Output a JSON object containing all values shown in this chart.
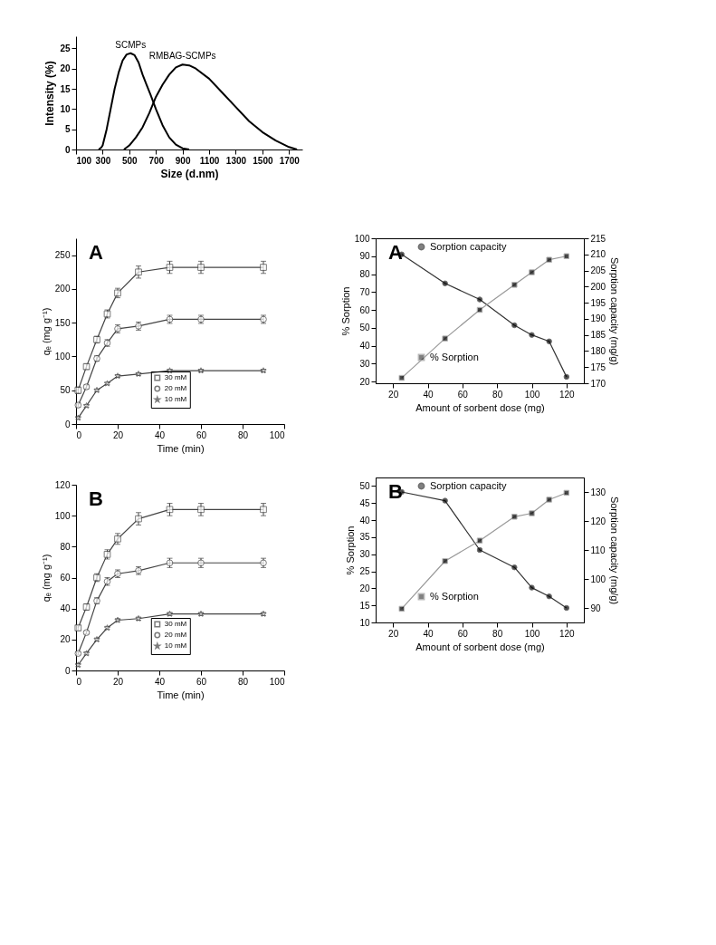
{
  "chart_data": [
    {
      "type": "line",
      "xlabel": "Size (d.nm)",
      "ylabel": "Intensity (%)",
      "xlim": [
        100,
        1800
      ],
      "xticks": [
        100,
        300,
        500,
        700,
        900,
        1100,
        1300,
        1500,
        1700
      ],
      "ylim": [
        0,
        28
      ],
      "yticks": [
        0,
        5,
        10,
        15,
        20,
        25
      ],
      "grid": false,
      "legend": false,
      "marker": "none",
      "line_style": "solid",
      "series": [
        {
          "name": "SCMPs",
          "color": "#000000",
          "x": [
            270,
            290,
            300,
            330,
            360,
            390,
            420,
            450,
            480,
            510,
            540,
            570,
            600,
            630,
            660,
            700,
            750,
            800,
            850,
            900,
            950
          ],
          "values": [
            0,
            0.5,
            1,
            5,
            10,
            15,
            19,
            22,
            23.5,
            23.8,
            23.3,
            21.5,
            18.5,
            16,
            13.5,
            10,
            6,
            3,
            1.2,
            0.3,
            0
          ]
        },
        {
          "name": "RMBAG-SCMPs",
          "color": "#000000",
          "x": [
            460,
            500,
            550,
            600,
            650,
            700,
            750,
            800,
            850,
            900,
            950,
            1000,
            1100,
            1200,
            1300,
            1400,
            1500,
            1600,
            1700,
            1760
          ],
          "values": [
            0,
            1,
            3,
            5.5,
            9,
            13,
            16,
            18.5,
            20.3,
            21,
            20.8,
            20,
            17.5,
            14,
            10.5,
            7,
            4.3,
            2.2,
            0.6,
            0
          ]
        }
      ]
    },
    {
      "type": "line",
      "annotations": [
        "A"
      ],
      "xlabel": "Time (min)",
      "ylabel": "qₑ (mg g⁻¹)",
      "xlim": [
        0,
        100
      ],
      "xticks": [
        0,
        20,
        40,
        60,
        80,
        100
      ],
      "ylim": [
        0,
        275
      ],
      "yticks": [
        0,
        50,
        100,
        150,
        200,
        250
      ],
      "grid": false,
      "legend": "bottom",
      "line_style": "solid",
      "x": [
        1,
        5,
        10,
        15,
        20,
        30,
        45,
        60,
        90
      ],
      "series": [
        {
          "name": "30 mM",
          "color": "#444444",
          "marker": "square",
          "values": [
            50,
            85,
            125,
            163,
            194,
            225,
            232,
            232,
            232
          ],
          "errors": [
            5,
            4,
            5,
            6,
            7,
            9,
            9,
            9,
            9
          ]
        },
        {
          "name": "20 mM",
          "color": "#444444",
          "marker": "circle",
          "values": [
            28,
            55,
            97,
            120,
            141,
            145,
            155,
            155,
            155
          ],
          "errors": [
            3,
            3,
            4,
            5,
            6,
            6,
            6,
            6,
            6
          ]
        },
        {
          "name": "10 mM",
          "color": "#444444",
          "marker": "star",
          "values": [
            9,
            27,
            50,
            60,
            71,
            74,
            79,
            79,
            79
          ],
          "errors": [
            2,
            2,
            2,
            2,
            2,
            2,
            2,
            2,
            2
          ]
        }
      ]
    },
    {
      "type": "line",
      "annotations": [
        "B"
      ],
      "xlabel": "Time (min)",
      "ylabel": "qₑ (mg g⁻¹)",
      "xlim": [
        0,
        100
      ],
      "xticks": [
        0,
        20,
        40,
        60,
        80,
        100
      ],
      "ylim": [
        0,
        120
      ],
      "yticks": [
        0,
        20,
        40,
        60,
        80,
        100,
        120
      ],
      "grid": false,
      "legend": "bottom",
      "line_style": "solid",
      "x": [
        1,
        5,
        10,
        15,
        20,
        30,
        45,
        60,
        90
      ],
      "series": [
        {
          "name": "30 mM",
          "color": "#444444",
          "marker": "square",
          "values": [
            27.5,
            41,
            60,
            75,
            85,
            98,
            104,
            104,
            104
          ],
          "errors": [
            1.5,
            2,
            2.5,
            3,
            3.5,
            4,
            4,
            4,
            4
          ]
        },
        {
          "name": "20 mM",
          "color": "#444444",
          "marker": "circle",
          "values": [
            11,
            24.5,
            45,
            57.5,
            62.5,
            64.5,
            69.5,
            69.5,
            69.5
          ],
          "errors": [
            1,
            1,
            2,
            2.5,
            2.5,
            2.5,
            3,
            3,
            3
          ]
        },
        {
          "name": "10 mM",
          "color": "#444444",
          "marker": "star",
          "values": [
            3.5,
            11,
            20,
            27.5,
            32.5,
            33.5,
            36.5,
            36.5,
            36.5
          ],
          "errors": [
            1,
            1,
            1,
            1,
            1,
            1,
            1,
            1,
            1
          ]
        }
      ]
    },
    {
      "type": "line",
      "annotations": [
        "A"
      ],
      "xlabel": "Amount of sorbent dose (mg)",
      "ylabel": "% Sorption",
      "y2label": "Sorption capacity (mg/g)",
      "x": [
        25,
        50,
        70,
        90,
        100,
        110,
        120
      ],
      "xlim": [
        10,
        130
      ],
      "xticks": [
        20,
        40,
        60,
        80,
        100,
        120
      ],
      "ylim": [
        19,
        100
      ],
      "yticks": [
        20,
        30,
        40,
        50,
        60,
        70,
        80,
        90,
        100
      ],
      "y2lim": [
        170,
        215
      ],
      "y2ticks": [
        170,
        175,
        180,
        185,
        190,
        195,
        200,
        205,
        210,
        215
      ],
      "grid": false,
      "legend": "left",
      "line_style": "solid",
      "series": [
        {
          "name": "Sorption capacity",
          "axis": "y2",
          "color": "#333333",
          "marker": "circle",
          "values": [
            210,
            201,
            196,
            188,
            185,
            183,
            172
          ]
        },
        {
          "name": "% Sorption",
          "color": "#999999",
          "marker": "square",
          "values": [
            22,
            44,
            60,
            74,
            81,
            88,
            90
          ]
        }
      ]
    },
    {
      "type": "line",
      "annotations": [
        "B"
      ],
      "xlabel": "Amount of sorbent dose (mg)",
      "ylabel": "% Sorption",
      "y2label": "Sorption capacity (mg/g)",
      "x": [
        25,
        50,
        70,
        90,
        100,
        110,
        120
      ],
      "xlim": [
        10,
        130
      ],
      "xticks": [
        20,
        40,
        60,
        80,
        100,
        120
      ],
      "ylim": [
        10,
        52.5
      ],
      "yticks": [
        10,
        15,
        20,
        25,
        30,
        35,
        40,
        45,
        50
      ],
      "y2lim": [
        85,
        135
      ],
      "y2ticks": [
        90,
        100,
        110,
        120,
        130
      ],
      "grid": false,
      "legend": "left",
      "line_style": "solid",
      "series": [
        {
          "name": "Sorption capacity",
          "axis": "y2",
          "color": "#333333",
          "marker": "circle",
          "values": [
            130,
            127,
            110,
            104,
            97,
            94,
            90
          ]
        },
        {
          "name": "% Sorption",
          "color": "#999999",
          "marker": "square",
          "values": [
            14,
            28,
            34,
            41,
            42,
            46,
            48
          ]
        }
      ]
    }
  ]
}
